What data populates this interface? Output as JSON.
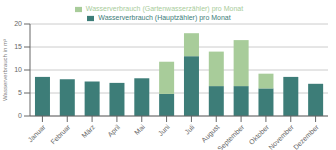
{
  "chart_data": {
    "type": "bar",
    "stacked": true,
    "ylabel": "Wasserverbrauch in m³",
    "categories": [
      "Januar",
      "Februar",
      "März",
      "April",
      "Mai",
      "Juni",
      "Juli",
      "August",
      "September",
      "Oktober",
      "November",
      "Dezember"
    ],
    "series": [
      {
        "name": "Wasserverbrauch (Hauptzähler) pro Monat",
        "color": "#3d7d78",
        "values": [
          8.5,
          8.0,
          7.5,
          7.2,
          8.2,
          4.8,
          13.0,
          6.5,
          6.5,
          6.0,
          8.5,
          7.0
        ]
      },
      {
        "name": "Wasserverbrauch (Gartenwasserzähler) pro Monat",
        "color": "#a8cc9a",
        "values": [
          0,
          0,
          0,
          0,
          0,
          7.0,
          5.0,
          7.5,
          10.0,
          3.2,
          0,
          0
        ]
      }
    ],
    "ylim": [
      0,
      20
    ],
    "yticks": [
      0,
      5,
      10,
      15,
      20
    ],
    "grid": true,
    "legend": "top"
  }
}
